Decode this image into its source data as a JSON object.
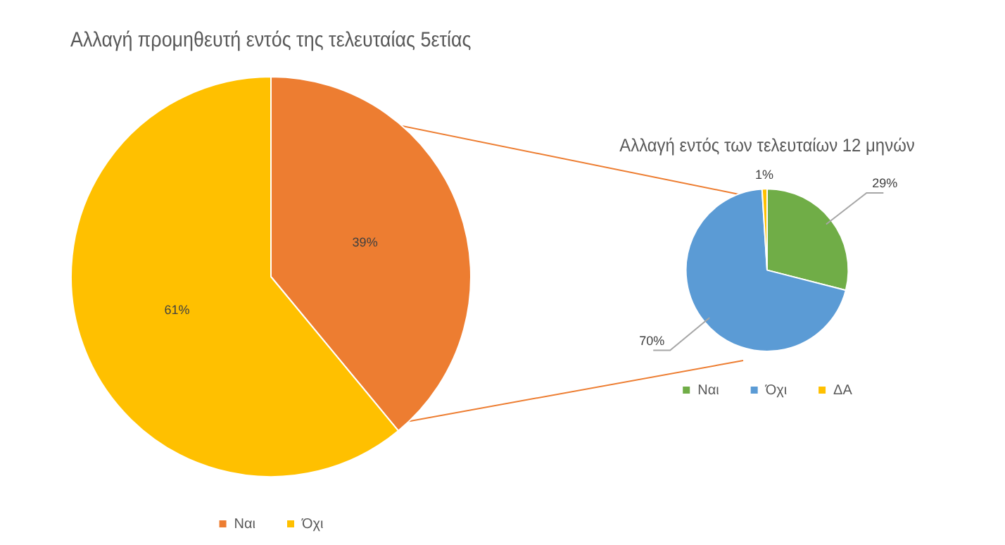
{
  "chart_data": [
    {
      "type": "pie",
      "title": "Αλλαγή προμηθευτή εντός της τελευταίας 5ετίας",
      "categories": [
        "Ναι",
        "Όχι"
      ],
      "values": [
        39,
        61
      ],
      "colors": [
        "#ed7d31",
        "#ffc000"
      ],
      "value_labels": [
        "39%",
        "61%"
      ],
      "legend": "bottom"
    },
    {
      "type": "pie",
      "title": "Αλλαγή εντός των τελευταίων 12 μηνών",
      "categories": [
        "Ναι",
        "Όχι",
        "ΔΑ"
      ],
      "values": [
        29,
        70,
        1
      ],
      "colors": [
        "#70ad47",
        "#5b9bd5",
        "#ffc000"
      ],
      "value_labels": [
        "29%",
        "70%",
        "1%"
      ],
      "legend": "bottom"
    }
  ]
}
